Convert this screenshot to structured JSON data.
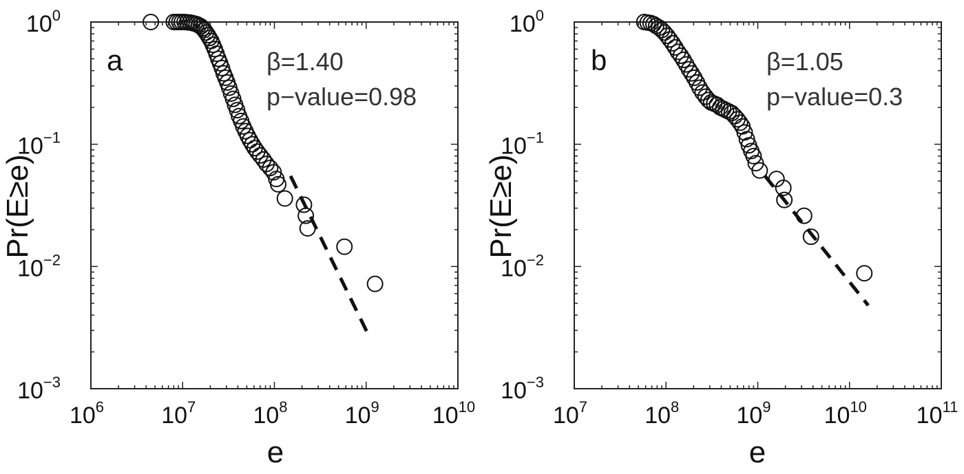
{
  "chart_data": [
    {
      "type": "scatter",
      "panel_letter": "a",
      "xlabel": "e",
      "ylabel": "Pr(E≥e)",
      "xscale": "log",
      "yscale": "log",
      "xlim": [
        1000000.0,
        10000000000.0
      ],
      "ylim": [
        0.001,
        1
      ],
      "x_ticks": [
        {
          "base": "10",
          "exp": "6",
          "value": 1000000.0
        },
        {
          "base": "10",
          "exp": "7",
          "value": 10000000.0
        },
        {
          "base": "10",
          "exp": "8",
          "value": 100000000.0
        },
        {
          "base": "10",
          "exp": "9",
          "value": 1000000000.0
        },
        {
          "base": "10",
          "exp": "10",
          "value": 10000000000.0
        }
      ],
      "y_ticks": [
        {
          "base": "10",
          "exp": "0",
          "value": 1
        },
        {
          "base": "10",
          "exp": "−1",
          "value": 0.1
        },
        {
          "base": "10",
          "exp": "−2",
          "value": 0.01
        },
        {
          "base": "10",
          "exp": "−3",
          "value": 0.001
        }
      ],
      "annotations": [
        "β=1.40",
        "p−value=0.98"
      ],
      "grid": false,
      "points": [
        [
          4500000.0,
          1.0
        ],
        [
          8000000.0,
          1.0
        ],
        [
          8600000.0,
          1.0
        ],
        [
          9200000.0,
          1.0
        ],
        [
          9800000.0,
          1.0
        ],
        [
          10500000.0,
          1.0
        ],
        [
          11200000.0,
          0.995
        ],
        [
          12000000.0,
          0.99
        ],
        [
          12800000.0,
          0.98
        ],
        [
          13500000.0,
          0.97
        ],
        [
          14200000.0,
          0.96
        ],
        [
          15000000.0,
          0.94
        ],
        [
          15800000.0,
          0.92
        ],
        [
          16500000.0,
          0.89
        ],
        [
          17200000.0,
          0.86
        ],
        [
          18000000.0,
          0.82
        ],
        [
          18800000.0,
          0.78
        ],
        [
          19600000.0,
          0.74
        ],
        [
          20500000.0,
          0.7
        ],
        [
          21400000.0,
          0.65
        ],
        [
          22400000.0,
          0.6
        ],
        [
          23400000.0,
          0.55
        ],
        [
          24500000.0,
          0.5
        ],
        [
          25600000.0,
          0.46
        ],
        [
          26800000.0,
          0.42
        ],
        [
          28000000.0,
          0.38
        ],
        [
          29300000.0,
          0.35
        ],
        [
          30700000.0,
          0.32
        ],
        [
          32200000.0,
          0.29
        ],
        [
          33800000.0,
          0.26
        ],
        [
          35500000.0,
          0.235
        ],
        [
          37300000.0,
          0.21
        ],
        [
          39200000.0,
          0.19
        ],
        [
          41200000.0,
          0.17
        ],
        [
          43400000.0,
          0.155
        ],
        [
          45800000.0,
          0.14
        ],
        [
          48400000.0,
          0.128
        ],
        [
          51200000.0,
          0.117
        ],
        [
          54200000.0,
          0.108
        ],
        [
          57500000.0,
          0.1
        ],
        [
          61000000.0,
          0.093
        ],
        [
          65000000.0,
          0.087
        ],
        [
          70000000.0,
          0.081
        ],
        [
          76000000.0,
          0.075
        ],
        [
          82000000.0,
          0.069
        ],
        [
          90000000.0,
          0.064
        ],
        [
          98000000.0,
          0.059
        ],
        [
          105000000.0,
          0.052
        ],
        [
          110000000.0,
          0.047
        ],
        [
          130000000.0,
          0.036
        ],
        [
          210000000.0,
          0.032
        ],
        [
          220000000.0,
          0.026
        ],
        [
          230000000.0,
          0.0205
        ],
        [
          580000000.0,
          0.0145
        ],
        [
          1250000000.0,
          0.0072
        ]
      ],
      "fit_line": {
        "x": [
          150000000.0,
          1100000000.0
        ],
        "y": [
          0.055,
          0.0026
        ]
      }
    },
    {
      "type": "scatter",
      "panel_letter": "b",
      "xlabel": "e",
      "ylabel": "Pr(E≥e)",
      "xscale": "log",
      "yscale": "log",
      "xlim": [
        10000000.0,
        100000000000.0
      ],
      "ylim": [
        0.001,
        1
      ],
      "x_ticks": [
        {
          "base": "10",
          "exp": "7",
          "value": 10000000.0
        },
        {
          "base": "10",
          "exp": "8",
          "value": 100000000.0
        },
        {
          "base": "10",
          "exp": "9",
          "value": 1000000000.0
        },
        {
          "base": "10",
          "exp": "10",
          "value": 10000000000.0
        },
        {
          "base": "10",
          "exp": "11",
          "value": 100000000000.0
        }
      ],
      "y_ticks": [
        {
          "base": "10",
          "exp": "0",
          "value": 1
        },
        {
          "base": "10",
          "exp": "−1",
          "value": 0.1
        },
        {
          "base": "10",
          "exp": "−2",
          "value": 0.01
        },
        {
          "base": "10",
          "exp": "−3",
          "value": 0.001
        }
      ],
      "annotations": [
        "β=1.05",
        "p−value=0.3"
      ],
      "grid": false,
      "points": [
        [
          58000000.0,
          1.0
        ],
        [
          63000000.0,
          0.99
        ],
        [
          68000000.0,
          0.98
        ],
        [
          73000000.0,
          0.96
        ],
        [
          78000000.0,
          0.93
        ],
        [
          84000000.0,
          0.9
        ],
        [
          90000000.0,
          0.86
        ],
        [
          96000000.0,
          0.82
        ],
        [
          103000000.0,
          0.77
        ],
        [
          110000000.0,
          0.72
        ],
        [
          118000000.0,
          0.67
        ],
        [
          126000000.0,
          0.62
        ],
        [
          135000000.0,
          0.57
        ],
        [
          145000000.0,
          0.53
        ],
        [
          155000000.0,
          0.49
        ],
        [
          166000000.0,
          0.45
        ],
        [
          178000000.0,
          0.41
        ],
        [
          190000000.0,
          0.38
        ],
        [
          203000000.0,
          0.35
        ],
        [
          217000000.0,
          0.32
        ],
        [
          232000000.0,
          0.29
        ],
        [
          250000000.0,
          0.265
        ],
        [
          270000000.0,
          0.245
        ],
        [
          290000000.0,
          0.23
        ],
        [
          310000000.0,
          0.22
        ],
        [
          335000000.0,
          0.215
        ],
        [
          360000000.0,
          0.21
        ],
        [
          390000000.0,
          0.2
        ],
        [
          420000000.0,
          0.195
        ],
        [
          450000000.0,
          0.19
        ],
        [
          485000000.0,
          0.185
        ],
        [
          520000000.0,
          0.18
        ],
        [
          560000000.0,
          0.17
        ],
        [
          600000000.0,
          0.16
        ],
        [
          640000000.0,
          0.15
        ],
        [
          680000000.0,
          0.14
        ],
        [
          720000000.0,
          0.125
        ],
        [
          760000000.0,
          0.11
        ],
        [
          800000000.0,
          0.098
        ],
        [
          850000000.0,
          0.088
        ],
        [
          900000000.0,
          0.08
        ],
        [
          950000000.0,
          0.07
        ],
        [
          1050000000.0,
          0.061
        ],
        [
          1600000000.0,
          0.052
        ],
        [
          1900000000.0,
          0.044
        ],
        [
          1950000000.0,
          0.035
        ],
        [
          3200000000.0,
          0.026
        ],
        [
          3800000000.0,
          0.0175
        ],
        [
          14500000000.0,
          0.0088
        ]
      ],
      "fit_line": {
        "x": [
          1200000000.0,
          16000000000.0
        ],
        "y": [
          0.055,
          0.0048
        ]
      }
    }
  ]
}
